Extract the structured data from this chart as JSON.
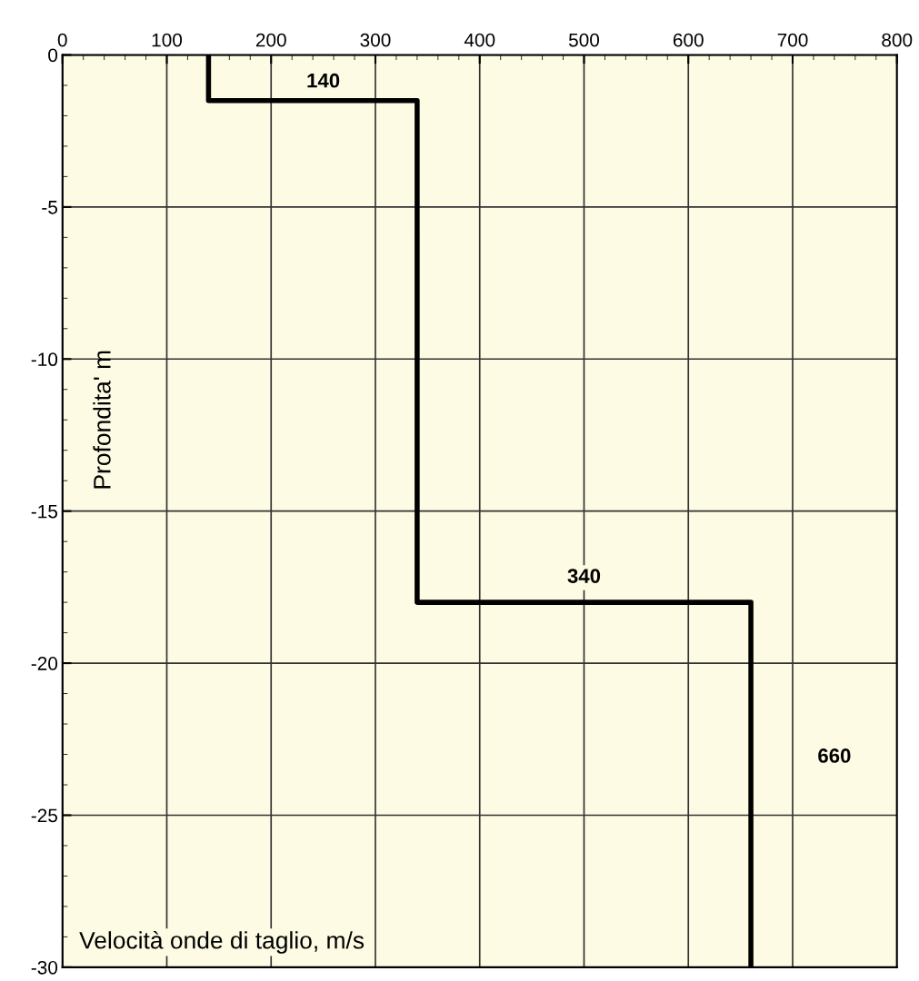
{
  "chart_data": {
    "type": "line",
    "xlabel": "Velocità onde di taglio, m/s",
    "ylabel": "Profondita' m",
    "series": [
      {
        "color": "#000000",
        "x": [
          140,
          140,
          340,
          340,
          660,
          660
        ],
        "values": [
          0,
          -1.5,
          -1.5,
          -18,
          -18,
          -30
        ]
      }
    ],
    "xlim": [
      0,
      800
    ],
    "xticks": [
      0,
      100,
      200,
      300,
      400,
      500,
      600,
      700,
      800
    ],
    "ylim": [
      -30,
      0
    ],
    "yticks": [
      -30,
      -25,
      -20,
      -15,
      -10,
      -5,
      0
    ],
    "grid": true,
    "line_style": "solid",
    "marker": "none",
    "annotations": [
      "140",
      "340",
      "660"
    ]
  }
}
